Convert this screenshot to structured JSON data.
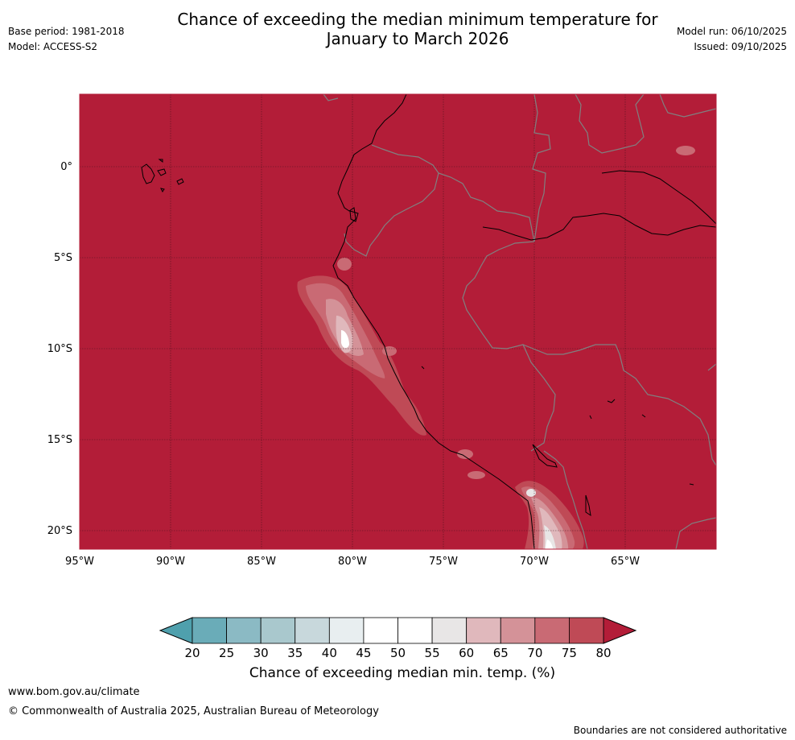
{
  "title_line1": "Chance of exceeding the median minimum temperature for",
  "title_line2": "January to March 2026",
  "base_period": "Base period: 1981-2018",
  "model": "Model: ACCESS-S2",
  "model_run": "Model run: 06/10/2025",
  "issued": "Issued: 09/10/2025",
  "map": {
    "lat_labels": [
      "0°",
      "5°S",
      "10°S",
      "15°S",
      "20°S"
    ],
    "lon_labels": [
      "95°W",
      "90°W",
      "85°W",
      "80°W",
      "75°W",
      "70°W",
      "65°W"
    ]
  },
  "colorbar": {
    "label": "Chance of exceeding median min. temp. (%)",
    "ticks": [
      "20",
      "25",
      "30",
      "35",
      "40",
      "45",
      "50",
      "55",
      "60",
      "65",
      "70",
      "75",
      "80"
    ],
    "colors": {
      "below20": "#4fa0ad",
      "c20_25": "#6aacb8",
      "c25_30": "#8bbac4",
      "c30_35": "#a9c8cd",
      "c35_40": "#c8d8dc",
      "c40_45": "#e8eef0",
      "c45_50": "#ffffff",
      "c50_55": "#ffffff",
      "c55_60": "#e8e6e6",
      "c60_65": "#e0b8bc",
      "c65_70": "#d49298",
      "c70_75": "#c96a74",
      "c75_80": "#bf4a56",
      "above80": "#b31d38"
    }
  },
  "footer": {
    "url": "www.bom.gov.au/climate",
    "copyright": "© Commonwealth of Australia 2025, Australian Bureau of Meteorology",
    "disclaimer": "Boundaries are not considered authoritative"
  }
}
